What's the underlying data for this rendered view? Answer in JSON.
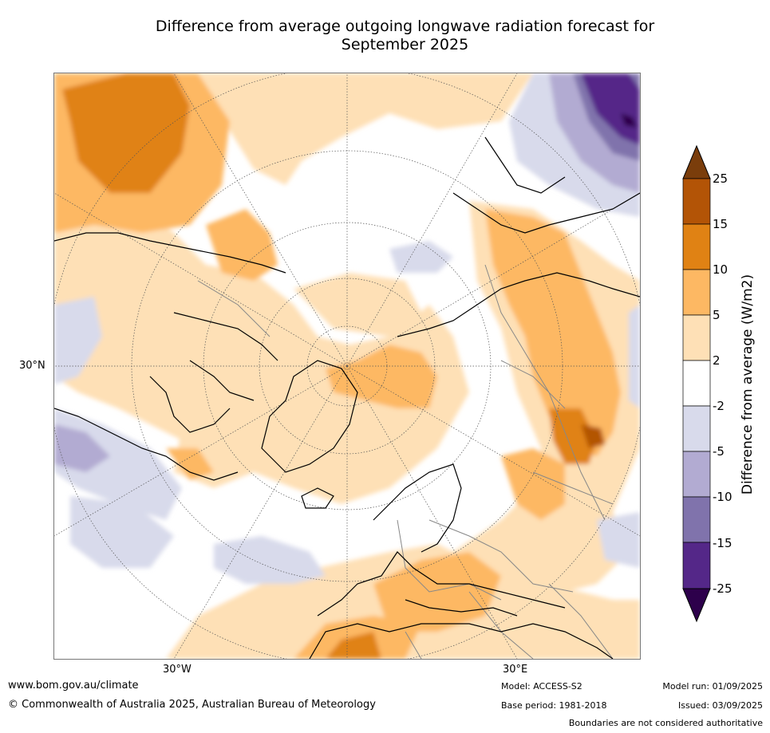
{
  "title_line1": "Difference from average outgoing longwave radiation forecast for",
  "title_line2": "September 2025",
  "map": {
    "lat_label": "30°N",
    "lon_labels": [
      "30°W",
      "30°E"
    ],
    "layers": [
      "coastlines",
      "country-boundaries",
      "graticule"
    ]
  },
  "legend": {
    "title": "Difference from average (W/m2)",
    "ticks": [
      "25",
      "15",
      "10",
      "5",
      "2",
      "-2",
      "-5",
      "-10",
      "-15",
      "-25"
    ],
    "colors": [
      "#7a3d0b",
      "#b35406",
      "#e08214",
      "#fdb863",
      "#fee0b6",
      "#ffffff",
      "#d8daeb",
      "#b2abd2",
      "#8073ac",
      "#542788",
      "#2d004b"
    ]
  },
  "footer": {
    "website": "www.bom.gov.au/climate",
    "copyright": "© Commonwealth of Australia 2025, Australian Bureau of Meteorology",
    "model": "Model: ACCESS-S2",
    "base_period": "Base period: 1981-2018",
    "model_run": "Model run: 01/09/2025",
    "issued": "Issued: 03/09/2025",
    "disclaimer": "Boundaries are not considered authoritative"
  }
}
